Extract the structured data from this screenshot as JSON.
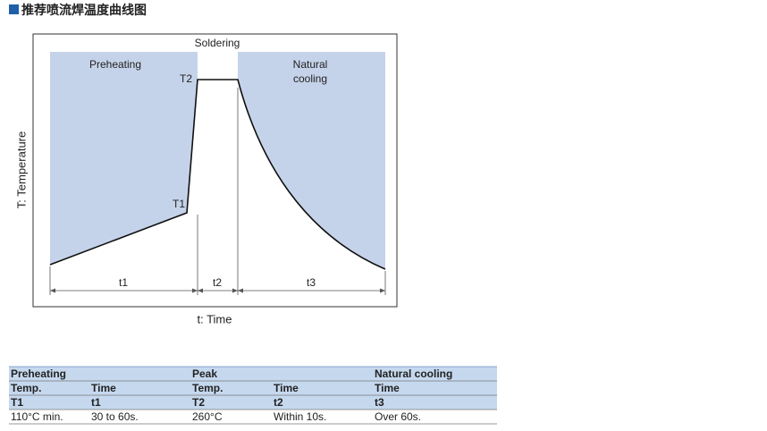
{
  "header": {
    "title": "推荐喷流焊温度曲线图"
  },
  "diagram": {
    "y_axis_label": "T: Temperature",
    "x_axis_label": "t: Time",
    "preheating_label": "Preheating",
    "soldering_label": "Soldering",
    "cooling_label": [
      "Natural",
      "cooling"
    ],
    "points": [
      "T1",
      "T2"
    ],
    "intervals": [
      "t1",
      "t2",
      "t3"
    ]
  },
  "table": {
    "groups": [
      "Preheating",
      "Peak",
      "Natural cooling"
    ],
    "rows": [
      [
        "Temp.",
        "Time",
        "Temp.",
        "Time",
        "Time"
      ],
      [
        "T1",
        "t1",
        "T2",
        "t2",
        "t3"
      ],
      [
        "110°C min.",
        "30 to 60s.",
        "260°C",
        "Within 10s.",
        "Over 60s."
      ]
    ]
  }
}
